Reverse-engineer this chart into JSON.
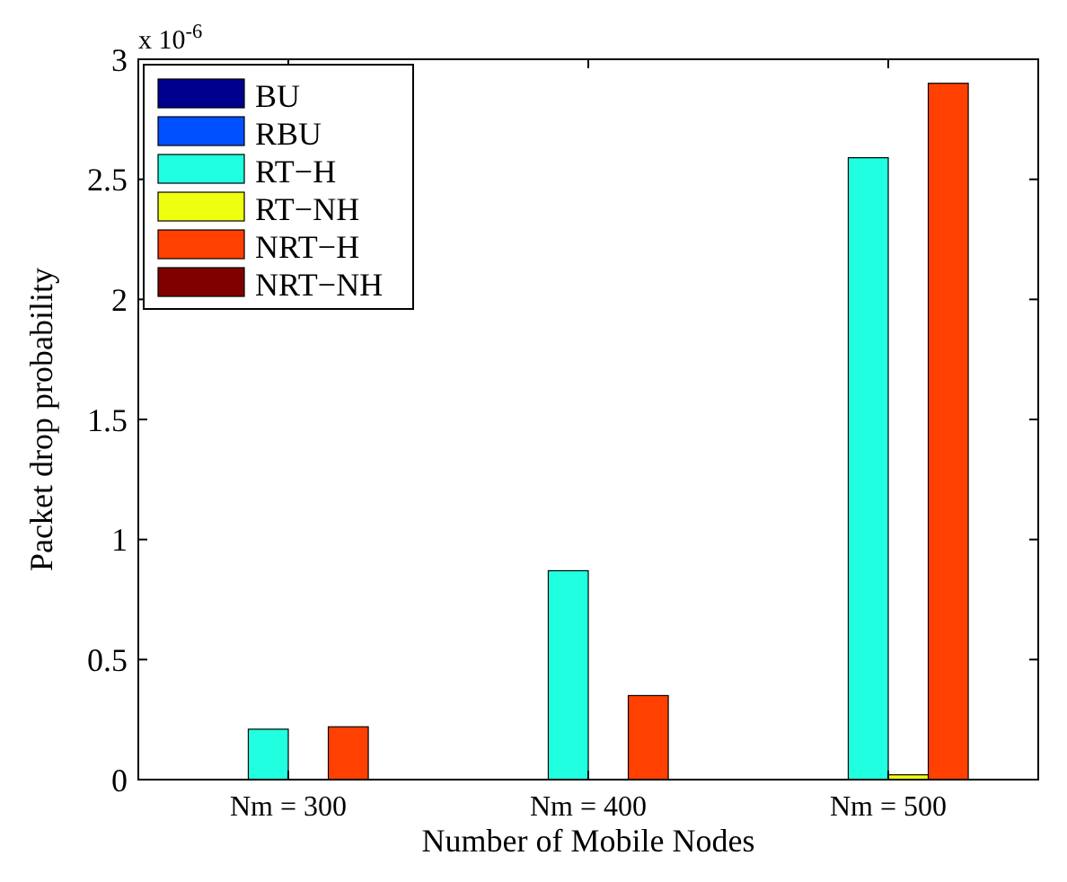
{
  "chart_data": {
    "type": "bar",
    "xlabel": "Number of Mobile Nodes",
    "ylabel": "Packet drop probability",
    "annotations": [
      "x 10$^{-6}$"
    ],
    "categories": [
      "Nm = 300",
      "Nm = 400",
      "Nm = 500"
    ],
    "series": [
      {
        "name": "BU",
        "color": "#00008f",
        "values": [
          0,
          0,
          0
        ]
      },
      {
        "name": "RBU",
        "color": "#0050ff",
        "values": [
          0,
          0,
          0
        ]
      },
      {
        "name": "RT−H",
        "color": "#20ffdf",
        "values": [
          0.21,
          0.87,
          2.59
        ]
      },
      {
        "name": "RT−NH",
        "color": "#efff10",
        "values": [
          0,
          0,
          0.02
        ]
      },
      {
        "name": "NRT−H",
        "color": "#ff4000",
        "values": [
          0.22,
          0.35,
          2.9
        ]
      },
      {
        "name": "NRT−NH",
        "color": "#800000",
        "values": [
          0,
          0,
          0
        ]
      }
    ],
    "ylim": [
      0,
      3
    ],
    "yticks": [
      0,
      0.5,
      1,
      1.5,
      2,
      2.5,
      3
    ],
    "legend": "top left",
    "grid": false
  }
}
